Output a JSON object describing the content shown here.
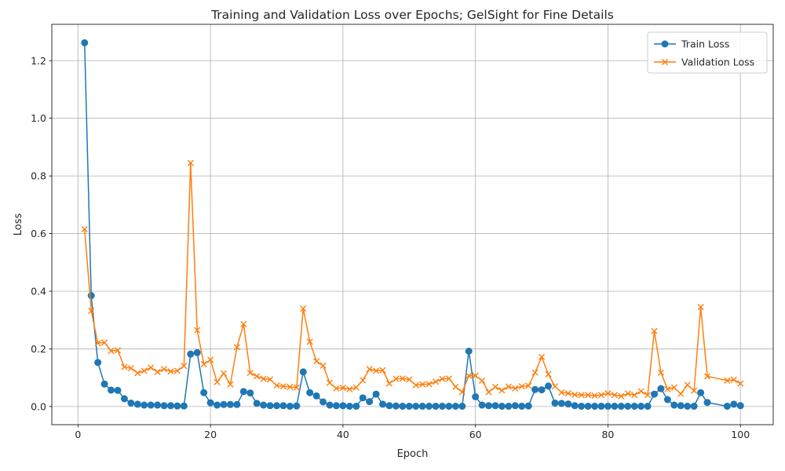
{
  "chart_data": {
    "type": "line",
    "title": "Training and Validation Loss over Epochs; GelSight for Fine Details",
    "xlabel": "Epoch",
    "ylabel": "Loss",
    "xlim": [
      -3.95,
      104.95
    ],
    "ylim": [
      -0.063,
      1.326
    ],
    "x_ticks": [
      0,
      20,
      40,
      60,
      80,
      100
    ],
    "y_ticks": [
      0.0,
      0.2,
      0.4,
      0.6,
      0.8,
      1.0,
      1.2
    ],
    "x_tick_labels": [
      "0",
      "20",
      "40",
      "60",
      "80",
      "100"
    ],
    "y_tick_labels": [
      "0.0",
      "0.2",
      "0.4",
      "0.6",
      "0.8",
      "1.0",
      "1.2"
    ],
    "grid": true,
    "legend_position": "top-right",
    "series": [
      {
        "name": "Train Loss",
        "color": "#1f77b4",
        "marker": "circle",
        "x": [
          1,
          2,
          3,
          4,
          5,
          6,
          7,
          8,
          9,
          10,
          11,
          12,
          13,
          14,
          15,
          16,
          17,
          18,
          19,
          20,
          21,
          22,
          23,
          24,
          25,
          26,
          27,
          28,
          29,
          30,
          31,
          32,
          33,
          34,
          35,
          36,
          37,
          38,
          39,
          40,
          41,
          42,
          43,
          44,
          45,
          46,
          47,
          48,
          49,
          50,
          51,
          52,
          53,
          54,
          55,
          56,
          57,
          58,
          59,
          60,
          61,
          62,
          63,
          64,
          65,
          66,
          67,
          68,
          69,
          70,
          71,
          72,
          73,
          74,
          75,
          76,
          77,
          78,
          79,
          80,
          81,
          82,
          83,
          84,
          85,
          86,
          87,
          88,
          89,
          90,
          91,
          92,
          93,
          94,
          95,
          98,
          99,
          100
        ],
        "values": [
          1.262,
          0.385,
          0.153,
          0.078,
          0.057,
          0.056,
          0.027,
          0.012,
          0.008,
          0.005,
          0.005,
          0.005,
          0.003,
          0.003,
          0.002,
          0.002,
          0.182,
          0.187,
          0.048,
          0.013,
          0.005,
          0.007,
          0.007,
          0.007,
          0.052,
          0.047,
          0.011,
          0.005,
          0.003,
          0.003,
          0.003,
          0.001,
          0.002,
          0.12,
          0.048,
          0.037,
          0.016,
          0.005,
          0.003,
          0.003,
          0.001,
          0.001,
          0.03,
          0.017,
          0.043,
          0.008,
          0.003,
          0.002,
          0.001,
          0.001,
          0.001,
          0.001,
          0.001,
          0.001,
          0.001,
          0.001,
          0.001,
          0.001,
          0.192,
          0.034,
          0.005,
          0.003,
          0.003,
          0.001,
          0.001,
          0.003,
          0.001,
          0.002,
          0.059,
          0.058,
          0.071,
          0.012,
          0.011,
          0.009,
          0.003,
          0.001,
          0.001,
          0.001,
          0.001,
          0.001,
          0.001,
          0.001,
          0.001,
          0.001,
          0.001,
          0.001,
          0.043,
          0.062,
          0.024,
          0.005,
          0.003,
          0.001,
          0.001,
          0.048,
          0.014,
          0.001,
          0.008,
          0.003
        ]
      },
      {
        "name": "Validation Loss",
        "color": "#ff7f0e",
        "marker": "x",
        "x": [
          1,
          2,
          3,
          4,
          5,
          6,
          7,
          8,
          9,
          10,
          11,
          12,
          13,
          14,
          15,
          16,
          17,
          18,
          19,
          20,
          21,
          22,
          23,
          24,
          25,
          26,
          27,
          28,
          29,
          30,
          31,
          32,
          33,
          34,
          35,
          36,
          37,
          38,
          39,
          40,
          41,
          42,
          43,
          44,
          45,
          46,
          47,
          48,
          49,
          50,
          51,
          52,
          53,
          54,
          55,
          56,
          57,
          58,
          59,
          60,
          61,
          62,
          63,
          64,
          65,
          66,
          67,
          68,
          69,
          70,
          71,
          72,
          73,
          74,
          75,
          76,
          77,
          78,
          79,
          80,
          81,
          82,
          83,
          84,
          85,
          86,
          87,
          88,
          89,
          90,
          91,
          92,
          93,
          94,
          95,
          98,
          99,
          100
        ],
        "values": [
          0.615,
          0.332,
          0.22,
          0.222,
          0.193,
          0.195,
          0.137,
          0.133,
          0.116,
          0.124,
          0.135,
          0.12,
          0.13,
          0.122,
          0.124,
          0.141,
          0.845,
          0.265,
          0.147,
          0.162,
          0.085,
          0.115,
          0.077,
          0.206,
          0.286,
          0.117,
          0.105,
          0.096,
          0.094,
          0.073,
          0.07,
          0.068,
          0.066,
          0.34,
          0.225,
          0.157,
          0.142,
          0.082,
          0.063,
          0.065,
          0.06,
          0.066,
          0.091,
          0.13,
          0.124,
          0.126,
          0.08,
          0.096,
          0.097,
          0.094,
          0.074,
          0.077,
          0.078,
          0.086,
          0.096,
          0.097,
          0.068,
          0.05,
          0.107,
          0.107,
          0.09,
          0.05,
          0.068,
          0.056,
          0.069,
          0.063,
          0.07,
          0.072,
          0.118,
          0.172,
          0.112,
          0.07,
          0.049,
          0.046,
          0.041,
          0.04,
          0.04,
          0.038,
          0.04,
          0.046,
          0.04,
          0.036,
          0.045,
          0.04,
          0.053,
          0.04,
          0.262,
          0.118,
          0.06,
          0.066,
          0.044,
          0.075,
          0.055,
          0.345,
          0.105,
          0.09,
          0.093,
          0.08
        ]
      }
    ]
  }
}
